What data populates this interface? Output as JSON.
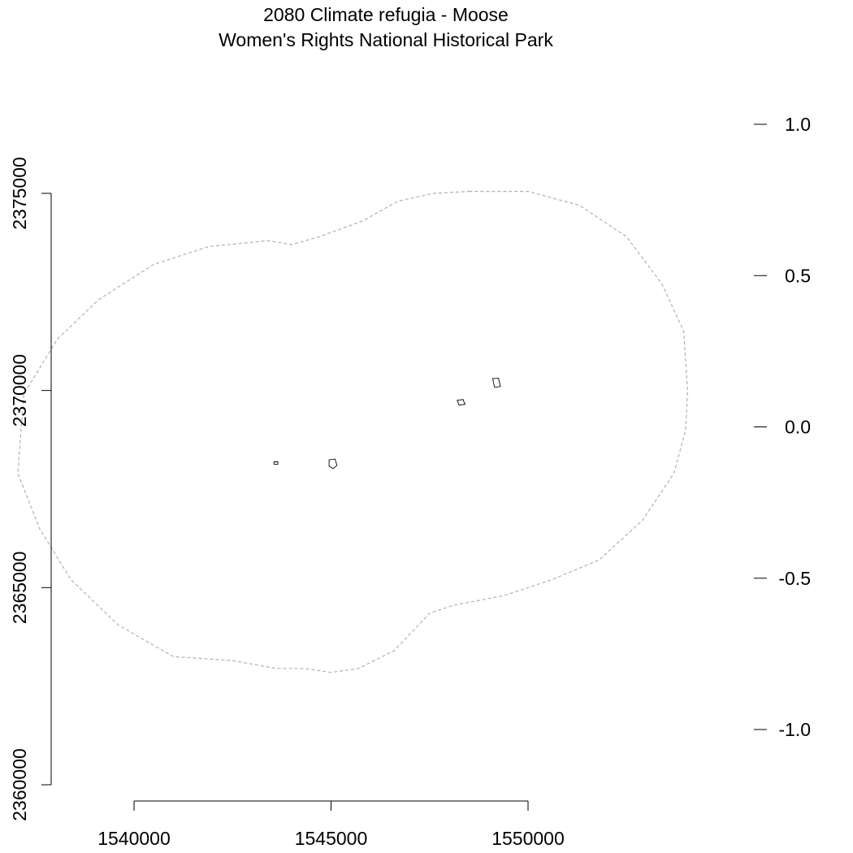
{
  "title": {
    "line1": "2080 Climate refugia - Moose",
    "line2": "Women's Rights National Historical Park"
  },
  "x_axis": {
    "ticks": [
      1540000,
      1545000,
      1550000
    ],
    "tick_labels": [
      "1540000",
      "1545000",
      "1550000"
    ]
  },
  "y_axis": {
    "ticks": [
      2360000,
      2365000,
      2370000,
      2375000
    ],
    "tick_labels": [
      "2360000",
      "2365000",
      "2370000",
      "2375000"
    ]
  },
  "legend_scale": {
    "ticks": [
      1.0,
      0.5,
      0.0,
      -0.5,
      -1.0
    ],
    "tick_labels": [
      "1.0",
      "0.5",
      "0.0",
      "-0.5",
      "-1.0"
    ]
  },
  "colors": {
    "buffer_outline": "#b0b0b0",
    "park_outline": "#000000",
    "axis": "#000000"
  },
  "map_data": {
    "buffer_boundary": [
      [
        1548500,
        2375050
      ],
      [
        1550000,
        2375050
      ],
      [
        1551300,
        2374700
      ],
      [
        1552500,
        2373900
      ],
      [
        1553400,
        2372700
      ],
      [
        1553950,
        2371500
      ],
      [
        1554050,
        2370000
      ],
      [
        1554000,
        2369000
      ],
      [
        1553700,
        2367900
      ],
      [
        1552900,
        2366700
      ],
      [
        1551800,
        2365700
      ],
      [
        1550600,
        2365200
      ],
      [
        1549400,
        2364800
      ],
      [
        1548100,
        2364550
      ],
      [
        1547500,
        2364350
      ],
      [
        1546600,
        2363400
      ],
      [
        1545700,
        2362950
      ],
      [
        1545000,
        2362850
      ],
      [
        1544300,
        2362950
      ],
      [
        1543600,
        2362950
      ],
      [
        1542500,
        2363150
      ],
      [
        1541000,
        2363250
      ],
      [
        1539600,
        2364050
      ],
      [
        1538400,
        2365200
      ],
      [
        1537600,
        2366500
      ],
      [
        1537050,
        2367900
      ],
      [
        1537200,
        2369900
      ],
      [
        1538050,
        2371300
      ],
      [
        1539100,
        2372300
      ],
      [
        1540500,
        2373200
      ],
      [
        1541900,
        2373650
      ],
      [
        1543400,
        2373800
      ],
      [
        1544000,
        2373700
      ],
      [
        1544700,
        2373900
      ],
      [
        1545800,
        2374300
      ],
      [
        1546700,
        2374800
      ],
      [
        1547600,
        2375000
      ],
      [
        1548500,
        2375050
      ]
    ],
    "park_units": [
      [
        [
          1543550,
          2368190
        ],
        [
          1543650,
          2368190
        ],
        [
          1543650,
          2368130
        ],
        [
          1543550,
          2368130
        ]
      ],
      [
        [
          1544950,
          2368240
        ],
        [
          1545100,
          2368260
        ],
        [
          1545150,
          2368100
        ],
        [
          1545050,
          2368020
        ],
        [
          1544950,
          2368080
        ]
      ],
      [
        [
          1548200,
          2369750
        ],
        [
          1548350,
          2369770
        ],
        [
          1548400,
          2369650
        ],
        [
          1548250,
          2369630
        ]
      ],
      [
        [
          1549100,
          2370300
        ],
        [
          1549250,
          2370310
        ],
        [
          1549300,
          2370100
        ],
        [
          1549150,
          2370080
        ]
      ]
    ]
  }
}
